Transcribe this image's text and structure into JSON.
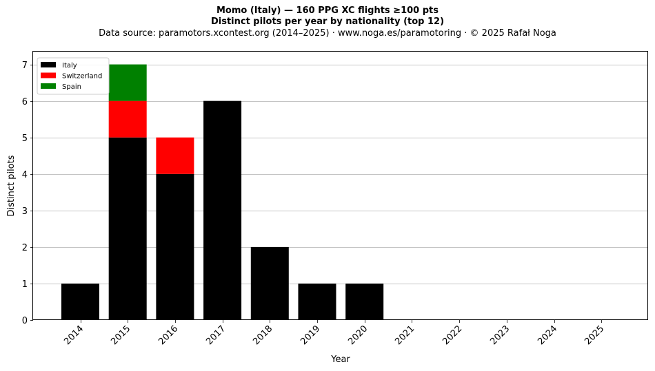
{
  "header": {
    "title": "Momo (Italy)  —  160 PPG XC flights ≥100 pts",
    "subtitle": "Distinct pilots per year by nationality (top 12)",
    "source": "Data source: paramotors.xcontest.org (2014–2025)  ·  www.noga.es/paramotoring  ·  © 2025 Rafał Noga"
  },
  "chart_data": {
    "type": "bar",
    "stacked": true,
    "xlabel": "Year",
    "ylabel": "Distinct pilots",
    "categories": [
      "2014",
      "2015",
      "2016",
      "2017",
      "2018",
      "2019",
      "2020",
      "2021",
      "2022",
      "2023",
      "2024",
      "2025"
    ],
    "ylim": [
      0,
      7.35
    ],
    "yticks": [
      0,
      1,
      2,
      3,
      4,
      5,
      6,
      7
    ],
    "grid": "y",
    "legend_position": "top-left",
    "series": [
      {
        "name": "Italy",
        "color": "#000000",
        "values": [
          1,
          5,
          4,
          6,
          2,
          1,
          1,
          0,
          0,
          0,
          0,
          0
        ]
      },
      {
        "name": "Switzerland",
        "color": "#ff0000",
        "values": [
          0,
          1,
          1,
          0,
          0,
          0,
          0,
          0,
          0,
          0,
          0,
          0
        ]
      },
      {
        "name": "Spain",
        "color": "#008000",
        "values": [
          0,
          1,
          0,
          0,
          0,
          0,
          0,
          0,
          0,
          0,
          0,
          0
        ]
      }
    ]
  }
}
